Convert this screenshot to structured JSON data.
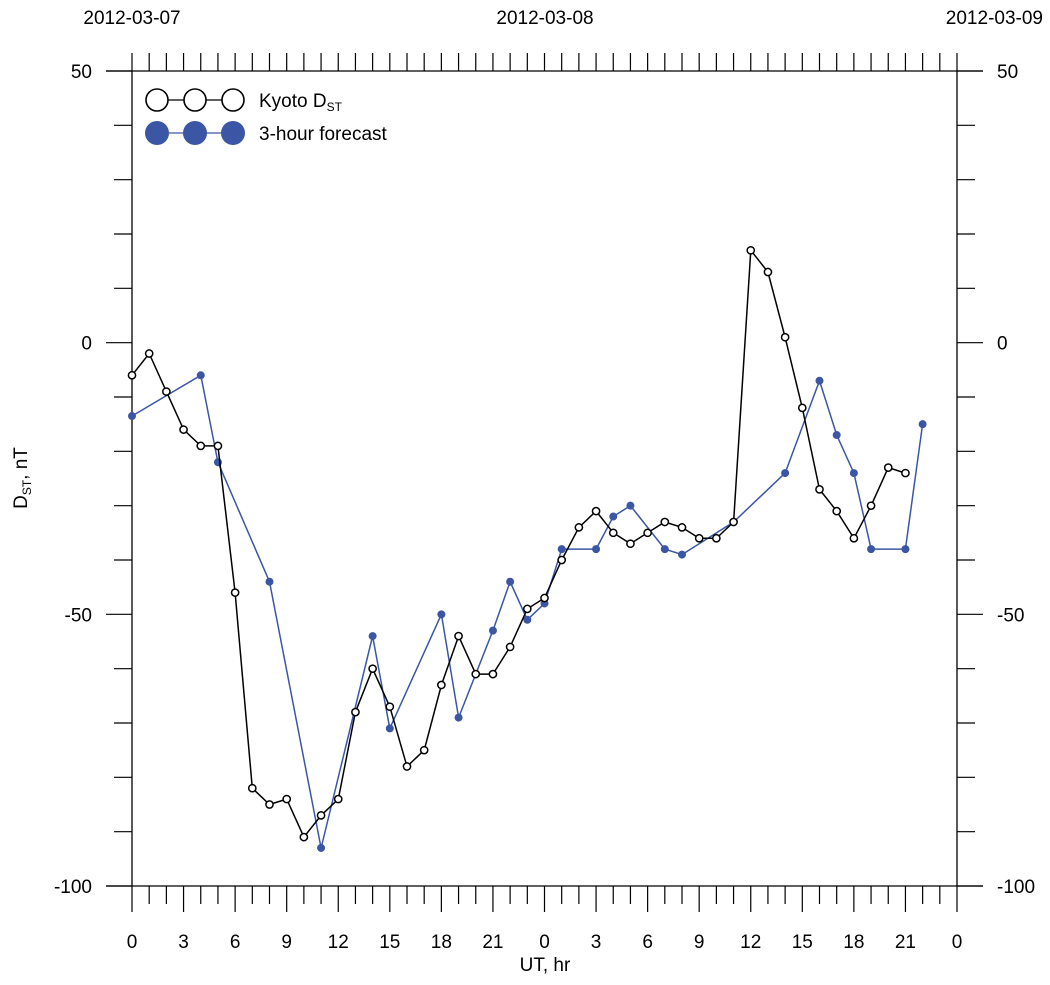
{
  "chart_data": {
    "type": "line",
    "top_dates": [
      "2012-03-07",
      "2012-03-08",
      "2012-03-09"
    ],
    "xlabel": "UT, hr",
    "ylabel": {
      "main": "D",
      "sub": "ST",
      "suffix": ", nT"
    },
    "x_range_hours": [
      0,
      48
    ],
    "x_tick_labels": [
      "0",
      "3",
      "6",
      "9",
      "12",
      "15",
      "18",
      "21",
      "0",
      "3",
      "6",
      "9",
      "12",
      "15",
      "18",
      "21",
      "0"
    ],
    "x_tick_every_hours": 3,
    "x_minor_every_hours": 1,
    "ylim": [
      -100,
      50
    ],
    "y_ticks": [
      {
        "value": 50,
        "label": "50"
      },
      {
        "value": 0,
        "label": "0"
      },
      {
        "value": -50,
        "label": "-50"
      },
      {
        "value": -100,
        "label": "-100"
      }
    ],
    "y_minor_every": 10,
    "legend_position": "top-left",
    "series": [
      {
        "name": "Kyoto D",
        "name_sub": "ST",
        "color": "#000000",
        "marker": "open-circle",
        "points": [
          {
            "x": "2012-03-07 00:00",
            "y": -6
          },
          {
            "x": "2012-03-07 01:00",
            "y": -2
          },
          {
            "x": "2012-03-07 02:00",
            "y": -9
          },
          {
            "x": "2012-03-07 03:00",
            "y": -16
          },
          {
            "x": "2012-03-07 04:00",
            "y": -19
          },
          {
            "x": "2012-03-07 05:00",
            "y": -19
          },
          {
            "x": "2012-03-07 06:00",
            "y": -46
          },
          {
            "x": "2012-03-07 07:00",
            "y": -82
          },
          {
            "x": "2012-03-07 08:00",
            "y": -85
          },
          {
            "x": "2012-03-07 09:00",
            "y": -84
          },
          {
            "x": "2012-03-07 10:00",
            "y": -91
          },
          {
            "x": "2012-03-07 11:00",
            "y": -87
          },
          {
            "x": "2012-03-07 12:00",
            "y": -84
          },
          {
            "x": "2012-03-07 13:00",
            "y": -68
          },
          {
            "x": "2012-03-07 14:00",
            "y": -60
          },
          {
            "x": "2012-03-07 15:00",
            "y": -67
          },
          {
            "x": "2012-03-07 16:00",
            "y": -78
          },
          {
            "x": "2012-03-07 17:00",
            "y": -75
          },
          {
            "x": "2012-03-07 18:00",
            "y": -63
          },
          {
            "x": "2012-03-07 19:00",
            "y": -54
          },
          {
            "x": "2012-03-07 20:00",
            "y": -61
          },
          {
            "x": "2012-03-07 21:00",
            "y": -61
          },
          {
            "x": "2012-03-07 22:00",
            "y": -56
          },
          {
            "x": "2012-03-07 23:00",
            "y": -49
          },
          {
            "x": "2012-03-08 00:00",
            "y": -47
          },
          {
            "x": "2012-03-08 01:00",
            "y": -40
          },
          {
            "x": "2012-03-08 02:00",
            "y": -34
          },
          {
            "x": "2012-03-08 03:00",
            "y": -31
          },
          {
            "x": "2012-03-08 04:00",
            "y": -35
          },
          {
            "x": "2012-03-08 05:00",
            "y": -37
          },
          {
            "x": "2012-03-08 06:00",
            "y": -35
          },
          {
            "x": "2012-03-08 07:00",
            "y": -33
          },
          {
            "x": "2012-03-08 08:00",
            "y": -34
          },
          {
            "x": "2012-03-08 09:00",
            "y": -36
          },
          {
            "x": "2012-03-08 10:00",
            "y": -36
          },
          {
            "x": "2012-03-08 11:00",
            "y": -33
          },
          {
            "x": "2012-03-08 12:00",
            "y": 17
          },
          {
            "x": "2012-03-08 13:00",
            "y": 13
          },
          {
            "x": "2012-03-08 14:00",
            "y": 1
          },
          {
            "x": "2012-03-08 15:00",
            "y": -12
          },
          {
            "x": "2012-03-08 16:00",
            "y": -27
          },
          {
            "x": "2012-03-08 17:00",
            "y": -31
          },
          {
            "x": "2012-03-08 18:00",
            "y": -36
          },
          {
            "x": "2012-03-08 19:00",
            "y": -30
          },
          {
            "x": "2012-03-08 20:00",
            "y": -23
          },
          {
            "x": "2012-03-08 21:00",
            "y": -24
          }
        ]
      },
      {
        "name": "3-hour forecast",
        "color": "#3a56a5",
        "marker": "filled-circle",
        "points": [
          {
            "x": "2012-03-07 00:00",
            "y": -13.5
          },
          {
            "x": "2012-03-07 04:00",
            "y": -6
          },
          {
            "x": "2012-03-07 05:00",
            "y": -22
          },
          {
            "x": "2012-03-07 08:00",
            "y": -44
          },
          {
            "x": "2012-03-07 11:00",
            "y": -93
          },
          {
            "x": "2012-03-07 14:00",
            "y": -54
          },
          {
            "x": "2012-03-07 15:00",
            "y": -71
          },
          {
            "x": "2012-03-07 18:00",
            "y": -50
          },
          {
            "x": "2012-03-07 19:00",
            "y": -69
          },
          {
            "x": "2012-03-07 21:00",
            "y": -53
          },
          {
            "x": "2012-03-07 22:00",
            "y": -44
          },
          {
            "x": "2012-03-07 23:00",
            "y": -51
          },
          {
            "x": "2012-03-08 00:00",
            "y": -48
          },
          {
            "x": "2012-03-08 01:00",
            "y": -38
          },
          {
            "x": "2012-03-08 03:00",
            "y": -38
          },
          {
            "x": "2012-03-08 04:00",
            "y": -32
          },
          {
            "x": "2012-03-08 05:00",
            "y": -30
          },
          {
            "x": "2012-03-08 07:00",
            "y": -38
          },
          {
            "x": "2012-03-08 08:00",
            "y": -39
          },
          {
            "x": "2012-03-08 11:00",
            "y": -33
          },
          {
            "x": "2012-03-08 14:00",
            "y": -24
          },
          {
            "x": "2012-03-08 16:00",
            "y": -7
          },
          {
            "x": "2012-03-08 17:00",
            "y": -17
          },
          {
            "x": "2012-03-08 18:00",
            "y": -24
          },
          {
            "x": "2012-03-08 19:00",
            "y": -38
          },
          {
            "x": "2012-03-08 21:00",
            "y": -38
          },
          {
            "x": "2012-03-08 22:00",
            "y": -15
          }
        ]
      }
    ]
  }
}
